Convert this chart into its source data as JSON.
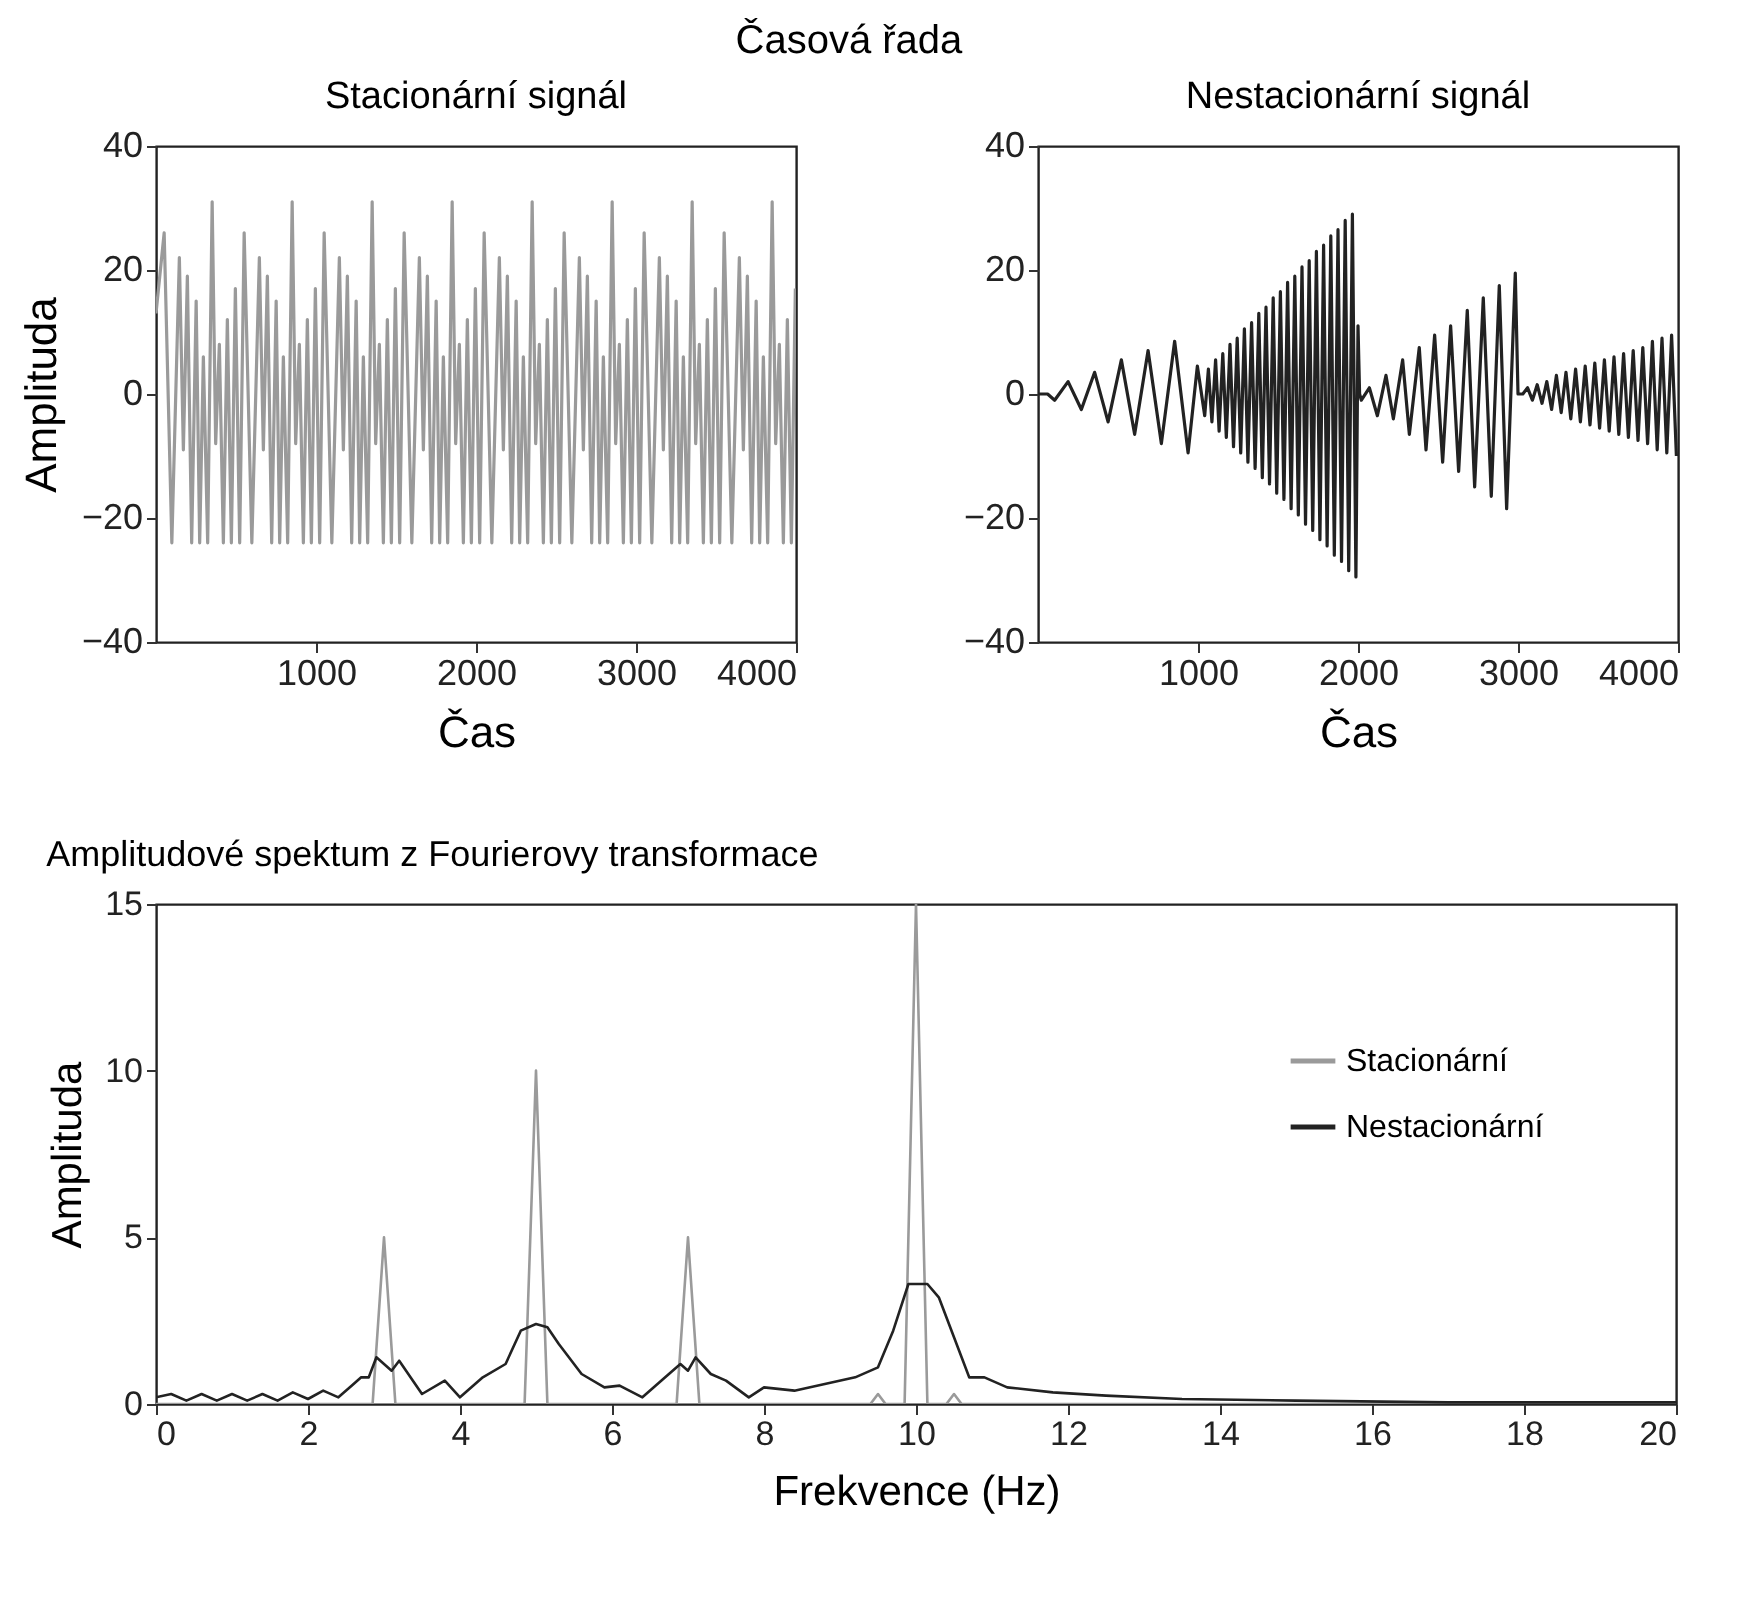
{
  "chart_data": [
    {
      "type": "line",
      "title": "Stacionární signál",
      "xlabel": "Čas",
      "ylabel": "Amplituda",
      "annotations": [
        "Časová řada"
      ],
      "xlim": [
        0,
        4000
      ],
      "xticks": [
        1000,
        2000,
        3000,
        4000
      ],
      "ylim": [
        -40,
        40
      ],
      "yticks": [
        -40,
        -20,
        0,
        20,
        40
      ],
      "series": [
        {
          "color": "#9a9a9a",
          "x": [
            0,
            51,
            99,
            146,
            171,
            196,
            223,
            251,
            273,
            296,
            323,
            351,
            373,
            396,
            421,
            446,
            471,
            496,
            523,
            551,
            599,
            646,
            671,
            696,
            723,
            751,
            773,
            796,
            823,
            851,
            873,
            896,
            921,
            946,
            971,
            996,
            1023,
            1051,
            1099,
            1146,
            1171,
            1196,
            1223,
            1251,
            1273,
            1296,
            1323,
            1351,
            1373,
            1396,
            1421,
            1446,
            1471,
            1496,
            1523,
            1551,
            1599,
            1646,
            1671,
            1696,
            1723,
            1751,
            1773,
            1796,
            1823,
            1851,
            1873,
            1896,
            1921,
            1946,
            1971,
            1996,
            2023,
            2051,
            2099,
            2146,
            2171,
            2196,
            2223,
            2251,
            2273,
            2296,
            2323,
            2351,
            2373,
            2396,
            2421,
            2446,
            2471,
            2496,
            2523,
            2551,
            2599,
            2646,
            2671,
            2696,
            2723,
            2751,
            2773,
            2796,
            2823,
            2851,
            2873,
            2896,
            2921,
            2946,
            2971,
            2996,
            3023,
            3051,
            3099,
            3146,
            3171,
            3196,
            3223,
            3251,
            3273,
            3296,
            3323,
            3351,
            3373,
            3396,
            3421,
            3446,
            3471,
            3496,
            3523,
            3551,
            3599,
            3646,
            3671,
            3696,
            3723,
            3751,
            3773,
            3796,
            3823,
            3851,
            3873,
            3896,
            3921,
            3946,
            3971,
            3996
          ],
          "values": [
            13,
            26,
            -24,
            22,
            -9,
            19,
            -24,
            15,
            -24,
            6,
            -24,
            31,
            -8,
            8,
            -24,
            12,
            -24,
            17,
            -24,
            26,
            -24,
            22,
            -9,
            19,
            -24,
            15,
            -24,
            6,
            -24,
            31,
            -8,
            8,
            -24,
            12,
            -24,
            17,
            -24,
            26,
            -24,
            22,
            -9,
            19,
            -24,
            15,
            -24,
            6,
            -24,
            31,
            -8,
            8,
            -24,
            12,
            -24,
            17,
            -24,
            26,
            -24,
            22,
            -9,
            19,
            -24,
            15,
            -24,
            6,
            -24,
            31,
            -8,
            8,
            -24,
            12,
            -24,
            17,
            -24,
            26,
            -24,
            22,
            -9,
            19,
            -24,
            15,
            -24,
            6,
            -24,
            31,
            -8,
            8,
            -24,
            12,
            -24,
            17,
            -24,
            26,
            -24,
            22,
            -9,
            19,
            -24,
            15,
            -24,
            6,
            -24,
            31,
            -8,
            8,
            -24,
            12,
            -24,
            17,
            -24,
            26,
            -24,
            22,
            -9,
            19,
            -24,
            15,
            -24,
            6,
            -24,
            31,
            -8,
            8,
            -24,
            12,
            -24,
            17,
            -24,
            26,
            -24,
            22,
            -9,
            19,
            -24,
            15,
            -24,
            6,
            -24,
            31,
            -8,
            8,
            -24,
            12,
            -24,
            17
          ]
        }
      ]
    },
    {
      "type": "line",
      "title": "Nestacionární signál",
      "xlabel": "Čas",
      "xlim": [
        0,
        4000
      ],
      "xticks": [
        1000,
        2000,
        3000,
        4000
      ],
      "ylim": [
        -40,
        40
      ],
      "yticks": [
        -40,
        -20,
        0,
        20,
        40
      ],
      "series": [
        {
          "color": "#222222",
          "x": [
            0,
            60,
            104,
            188,
            271,
            354,
            438,
            521,
            604,
            688,
            771,
            854,
            938,
            996,
            1042,
            1065,
            1087,
            1110,
            1132,
            1155,
            1177,
            1200,
            1222,
            1245,
            1267,
            1290,
            1312,
            1335,
            1357,
            1380,
            1402,
            1425,
            1447,
            1470,
            1492,
            1515,
            1537,
            1560,
            1582,
            1605,
            1627,
            1650,
            1672,
            1695,
            1717,
            1740,
            1762,
            1785,
            1807,
            1830,
            1852,
            1875,
            1897,
            1920,
            1942,
            1965,
            1987,
            2000,
            2010,
            2021,
            2071,
            2121,
            2175,
            2221,
            2279,
            2321,
            2383,
            2425,
            2479,
            2529,
            2579,
            2629,
            2683,
            2729,
            2783,
            2833,
            2883,
            2929,
            2983,
            3000,
            3030,
            3060,
            3090,
            3120,
            3150,
            3180,
            3210,
            3240,
            3270,
            3300,
            3330,
            3360,
            3390,
            3420,
            3450,
            3480,
            3510,
            3540,
            3570,
            3600,
            3630,
            3660,
            3690,
            3720,
            3750,
            3780,
            3810,
            3840,
            3870,
            3900,
            3930,
            3960,
            3990
          ],
          "values": [
            0,
            0,
            -1,
            2,
            -2.5,
            3.5,
            -4.5,
            5.5,
            -6.5,
            7,
            -8,
            8.5,
            -9.5,
            4.5,
            -3.5,
            4,
            -4.5,
            5.5,
            -6,
            6.5,
            -7,
            8,
            -8.5,
            9,
            -9.5,
            10.5,
            -11,
            11.5,
            -12,
            13,
            -13.5,
            14,
            -14.5,
            15.5,
            -16,
            16.5,
            -17,
            18,
            -18.5,
            19,
            -19.5,
            20.5,
            -21,
            21.5,
            -22,
            23,
            -23.5,
            24,
            -24.5,
            25.5,
            -26,
            26.5,
            -27,
            28,
            -28.5,
            29,
            -29.5,
            11,
            0,
            -1,
            1,
            -3.5,
            3,
            -4,
            5.5,
            -6.5,
            7.5,
            -9,
            9.5,
            -11,
            11,
            -12.5,
            13.5,
            -15,
            15.5,
            -16.5,
            17.5,
            -18.5,
            19.5,
            0,
            0,
            1,
            -1,
            1.5,
            -1.5,
            2,
            -2.5,
            3,
            -3,
            3.5,
            -4,
            4,
            -4.5,
            4.5,
            -5,
            5,
            -5.5,
            5.5,
            -6,
            6,
            -6.5,
            6.5,
            -7,
            7,
            -7.5,
            7.5,
            -8,
            8.5,
            -9,
            9,
            -9.5,
            9.5,
            -10
          ]
        }
      ]
    },
    {
      "type": "line",
      "title": "Amplitudové spektum z Fourierovy transformace",
      "xlabel": "Frekvence (Hz)",
      "ylabel": "Amplituda",
      "xlim": [
        0,
        20
      ],
      "xticks": [
        0,
        2,
        4,
        6,
        8,
        10,
        12,
        14,
        16,
        18,
        20
      ],
      "ylim": [
        0,
        15
      ],
      "yticks": [
        0,
        5,
        10,
        15
      ],
      "legend": "top right",
      "series": [
        {
          "name": "Stacionární",
          "color": "#9a9a9a",
          "x": [
            0,
            2.85,
            3,
            3.15,
            4.85,
            5,
            5.15,
            6.85,
            7,
            7.15,
            9.4,
            9.5,
            9.6,
            9.85,
            10,
            10.15,
            10.4,
            10.5,
            10.6,
            20
          ],
          "values": [
            0,
            0,
            5,
            0,
            0,
            10,
            0,
            0,
            5,
            0,
            0,
            0.3,
            0,
            0,
            15,
            0,
            0,
            0.3,
            0,
            0
          ]
        },
        {
          "name": "Nestacionární",
          "color": "#222222",
          "x": [
            0,
            0.2,
            0.4,
            0.6,
            0.8,
            1,
            1.2,
            1.4,
            1.6,
            1.8,
            2,
            2.2,
            2.4,
            2.6,
            2.7,
            2.8,
            2.9,
            3.1,
            3.2,
            3.5,
            3.8,
            4,
            4.3,
            4.6,
            4.8,
            5,
            5.15,
            5.3,
            5.6,
            5.9,
            6.1,
            6.4,
            6.7,
            6.9,
            7,
            7.1,
            7.3,
            7.5,
            7.8,
            8,
            8.4,
            8.8,
            9.2,
            9.5,
            9.7,
            9.9,
            10.15,
            10.3,
            10.5,
            10.7,
            10.9,
            11.2,
            11.8,
            12.5,
            13.5,
            15,
            17,
            20
          ],
          "values": [
            0.2,
            0.3,
            0.1,
            0.3,
            0.1,
            0.3,
            0.1,
            0.3,
            0.1,
            0.35,
            0.15,
            0.4,
            0.2,
            0.6,
            0.8,
            0.8,
            1.4,
            1,
            1.3,
            0.3,
            0.7,
            0.2,
            0.8,
            1.2,
            2.2,
            2.4,
            2.3,
            1.8,
            0.9,
            0.5,
            0.55,
            0.2,
            0.8,
            1.2,
            1,
            1.4,
            0.9,
            0.7,
            0.2,
            0.5,
            0.4,
            0.6,
            0.8,
            1.1,
            2.2,
            3.6,
            3.6,
            3.2,
            2,
            0.8,
            0.8,
            0.5,
            0.35,
            0.25,
            0.15,
            0.1,
            0.05,
            0.05
          ]
        }
      ]
    }
  ]
}
